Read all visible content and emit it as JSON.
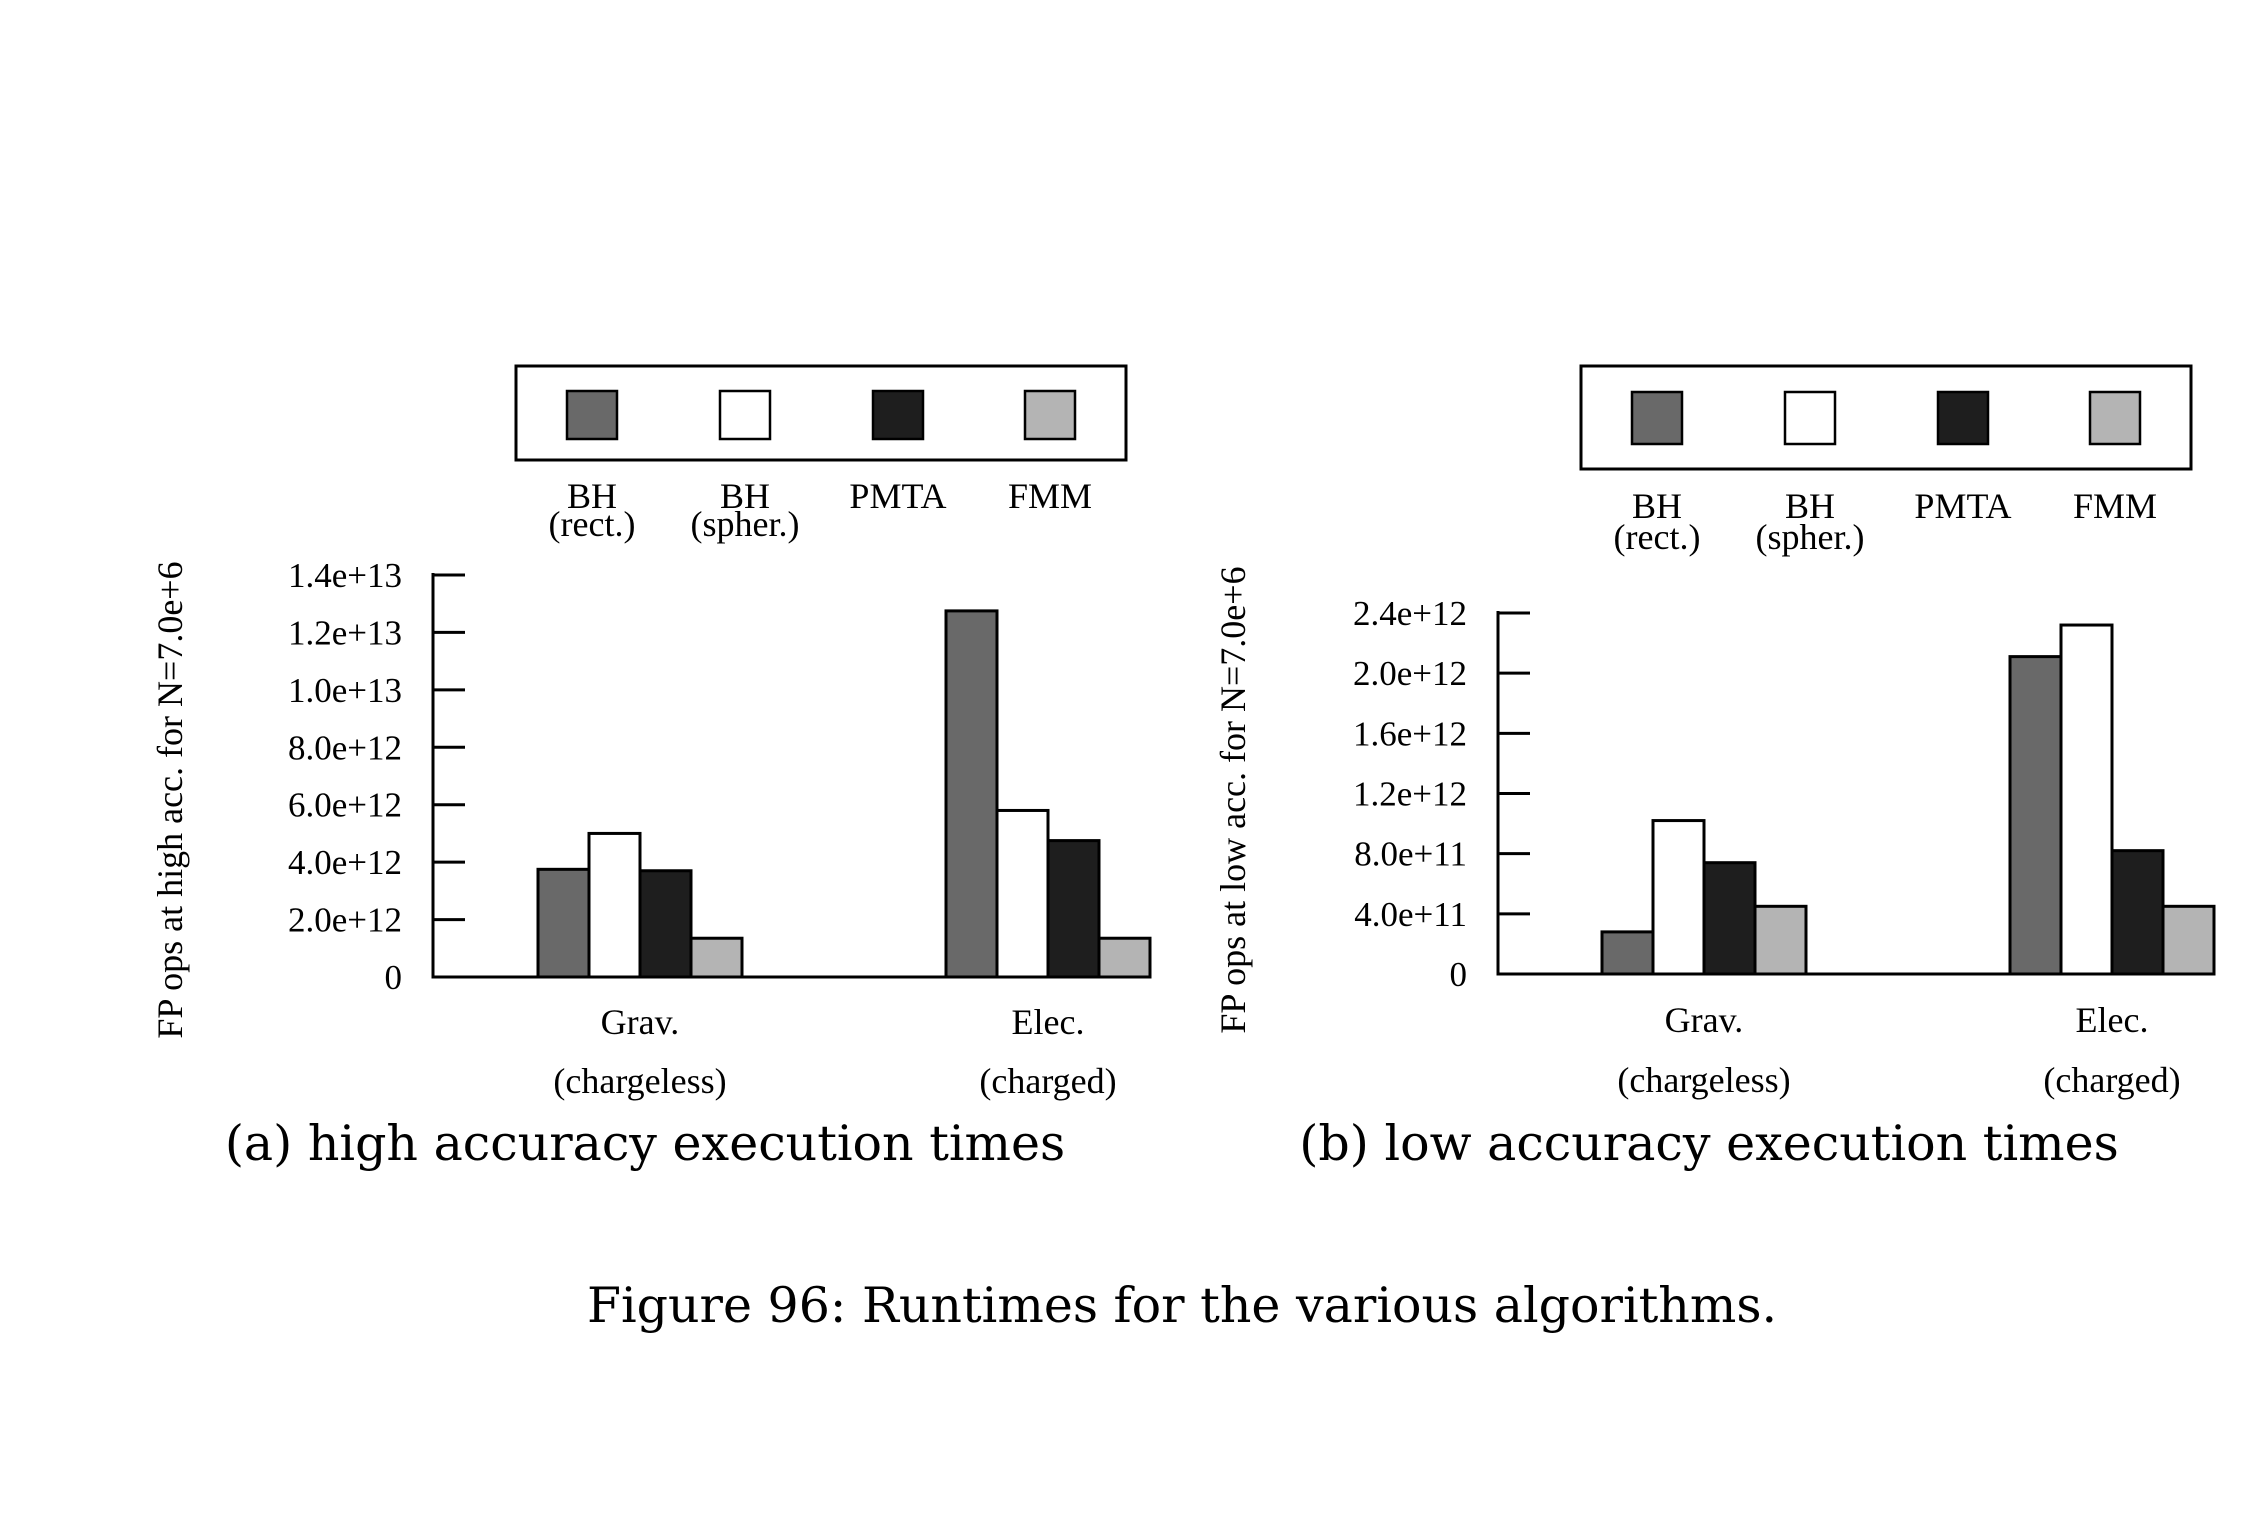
{
  "figure_caption": "Figure 96: Runtimes for the various algorithms.",
  "colors": {
    "BH (rect.)": "#696969",
    "BH (spher.)": "#ffffff",
    "PMTA": "#1e1e1e",
    "FMM": "#b4b4b4"
  },
  "chart_data": [
    {
      "type": "bar",
      "caption": "(a) high accuracy execution times",
      "ylabel": "FP ops at high acc. for N=7.0e+6",
      "ylim": [
        0,
        14000000000000
      ],
      "yticks": [
        0,
        2000000000000,
        4000000000000,
        6000000000000,
        8000000000000,
        10000000000000,
        12000000000000,
        14000000000000
      ],
      "ytick_labels": [
        "0",
        "2.0e+12",
        "4.0e+12",
        "6.0e+12",
        "8.0e+12",
        "1.0e+13",
        "1.2e+13",
        "1.4e+13"
      ],
      "categories": [
        {
          "line1": "Grav.",
          "line2": "(chargeless)"
        },
        {
          "line1": "Elec.",
          "line2": "(charged)"
        }
      ],
      "legend_position": "top",
      "series": [
        {
          "name": "BH (rect.)",
          "line1": "BH",
          "line2": "(rect.)",
          "color": "#696969",
          "values": [
            3750000000000,
            12750000000000
          ]
        },
        {
          "name": "BH (spher.)",
          "line1": "BH",
          "line2": "(spher.)",
          "color": "#ffffff",
          "values": [
            5000000000000,
            5800000000000
          ]
        },
        {
          "name": "PMTA",
          "line1": "PMTA",
          "line2": "",
          "color": "#1e1e1e",
          "values": [
            3700000000000,
            4750000000000
          ]
        },
        {
          "name": "FMM",
          "line1": "FMM",
          "line2": "",
          "color": "#b4b4b4",
          "values": [
            1350000000000,
            1350000000000
          ]
        }
      ]
    },
    {
      "type": "bar",
      "caption": "(b) low accuracy execution times",
      "ylabel": "FP ops at low acc. for N=7.0e+6",
      "ylim": [
        0,
        2400000000000
      ],
      "yticks": [
        0,
        400000000000,
        800000000000,
        1200000000000,
        1600000000000,
        2000000000000,
        2400000000000
      ],
      "ytick_labels": [
        "0",
        "4.0e+11",
        "8.0e+11",
        "1.2e+12",
        "1.6e+12",
        "2.0e+12",
        "2.4e+12"
      ],
      "categories": [
        {
          "line1": "Grav.",
          "line2": "(chargeless)"
        },
        {
          "line1": "Elec.",
          "line2": "(charged)"
        }
      ],
      "legend_position": "top",
      "series": [
        {
          "name": "BH (rect.)",
          "line1": "BH",
          "line2": "(rect.)",
          "color": "#696969",
          "values": [
            280000000000,
            2110000000000
          ]
        },
        {
          "name": "BH (spher.)",
          "line1": "BH",
          "line2": "(spher.)",
          "color": "#ffffff",
          "values": [
            1020000000000,
            2320000000000
          ]
        },
        {
          "name": "PMTA",
          "line1": "PMTA",
          "line2": "",
          "color": "#1e1e1e",
          "values": [
            740000000000,
            820000000000
          ]
        },
        {
          "name": "FMM",
          "line1": "FMM",
          "line2": "",
          "color": "#b4b4b4",
          "values": [
            450000000000,
            450000000000
          ]
        }
      ]
    }
  ]
}
